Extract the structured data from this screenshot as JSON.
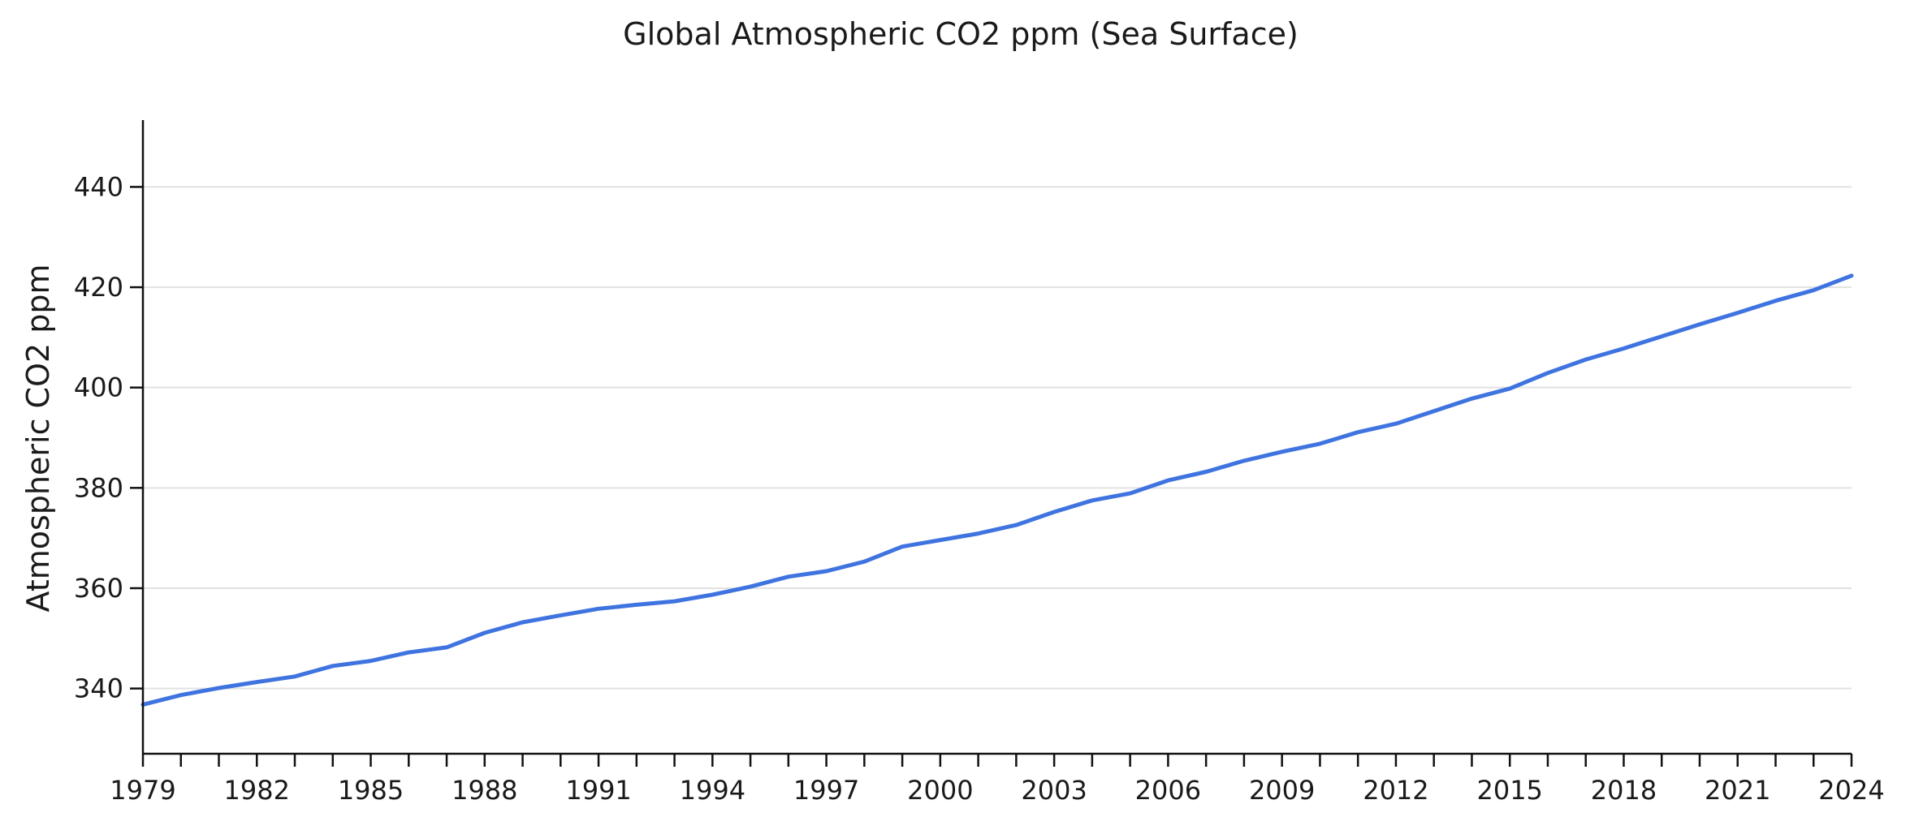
{
  "chart_data": {
    "type": "line",
    "title": "Global Atmospheric CO2 ppm (Sea Surface)",
    "xlabel": "",
    "ylabel": "Atmospheric CO2 ppm",
    "xlim": [
      1979,
      2024
    ],
    "ylim": [
      327,
      453
    ],
    "x_ticks": [
      1979,
      1982,
      1985,
      1988,
      1991,
      1994,
      1997,
      2000,
      2003,
      2006,
      2009,
      2012,
      2015,
      2018,
      2021,
      2024
    ],
    "y_ticks": [
      340,
      360,
      380,
      400,
      420,
      440
    ],
    "grid": "horizontal",
    "legend": "none",
    "x": [
      1979,
      1980,
      1981,
      1982,
      1983,
      1984,
      1985,
      1986,
      1987,
      1988,
      1989,
      1990,
      1991,
      1992,
      1993,
      1994,
      1995,
      1996,
      1997,
      1998,
      1999,
      2000,
      2001,
      2002,
      2003,
      2004,
      2005,
      2006,
      2007,
      2008,
      2009,
      2010,
      2011,
      2012,
      2013,
      2014,
      2015,
      2016,
      2017,
      2018,
      2019,
      2020,
      2021,
      2022,
      2023,
      2024
    ],
    "series": [
      {
        "color": "#3f74e0",
        "values": [
          336.8,
          338.7,
          340.1,
          341.3,
          342.4,
          344.5,
          345.5,
          347.2,
          348.2,
          351.1,
          353.2,
          354.6,
          355.9,
          356.7,
          357.4,
          358.7,
          360.3,
          362.3,
          363.4,
          365.3,
          368.3,
          369.6,
          370.9,
          372.6,
          375.2,
          377.5,
          378.9,
          381.5,
          383.2,
          385.4,
          387.2,
          388.8,
          391.1,
          392.8,
          395.3,
          397.8,
          399.8,
          402.9,
          405.6,
          407.8,
          410.2,
          412.6,
          414.9,
          417.3,
          419.4,
          422.3
        ]
      }
    ]
  }
}
